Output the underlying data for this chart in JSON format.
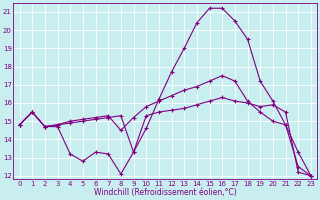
{
  "xlabel": "Windchill (Refroidissement éolien,°C)",
  "bg_color": "#c8eef0",
  "line_color": "#800080",
  "grid_color": "#ffffff",
  "xlim_min": -0.5,
  "xlim_max": 23.5,
  "ylim_min": 11.8,
  "ylim_max": 21.5,
  "yticks": [
    12,
    13,
    14,
    15,
    16,
    17,
    18,
    19,
    20,
    21
  ],
  "xticks": [
    0,
    1,
    2,
    3,
    4,
    5,
    6,
    7,
    8,
    9,
    10,
    11,
    12,
    13,
    14,
    15,
    16,
    17,
    18,
    19,
    20,
    21,
    22,
    23
  ],
  "line1_x": [
    0,
    1,
    2,
    3,
    4,
    5,
    6,
    7,
    8,
    9,
    10,
    11,
    12,
    13,
    14,
    15,
    16,
    17,
    18,
    19,
    20,
    21,
    22,
    23
  ],
  "line1_y": [
    14.8,
    15.5,
    14.7,
    14.7,
    13.2,
    12.8,
    13.3,
    13.2,
    12.1,
    13.3,
    14.6,
    16.2,
    17.7,
    19.0,
    20.4,
    21.2,
    21.2,
    20.5,
    19.5,
    17.2,
    16.1,
    14.8,
    13.3,
    12.0
  ],
  "line2_x": [
    0,
    1,
    2,
    3,
    4,
    5,
    6,
    7,
    8,
    9,
    10,
    11,
    12,
    13,
    14,
    15,
    16,
    17,
    18,
    19,
    20,
    21,
    22,
    23
  ],
  "line2_y": [
    14.8,
    15.5,
    14.7,
    14.8,
    15.0,
    15.1,
    15.2,
    15.3,
    14.5,
    15.2,
    15.8,
    16.1,
    16.4,
    16.7,
    16.9,
    17.2,
    17.5,
    17.2,
    16.1,
    15.5,
    15.0,
    14.8,
    12.5,
    12.0
  ],
  "line3_x": [
    0,
    1,
    2,
    3,
    4,
    5,
    6,
    7,
    8,
    9,
    10,
    11,
    12,
    13,
    14,
    15,
    16,
    17,
    18,
    19,
    20,
    21,
    22,
    23
  ],
  "line3_y": [
    14.8,
    15.5,
    14.7,
    14.8,
    14.9,
    15.0,
    15.1,
    15.2,
    15.3,
    13.3,
    15.3,
    15.5,
    15.6,
    15.7,
    15.9,
    16.1,
    16.3,
    16.1,
    16.0,
    15.8,
    15.9,
    15.5,
    12.2,
    12.0
  ],
  "marker": "+",
  "markersize": 3,
  "linewidth": 0.8,
  "tick_fontsize": 5,
  "xlabel_fontsize": 5.5
}
